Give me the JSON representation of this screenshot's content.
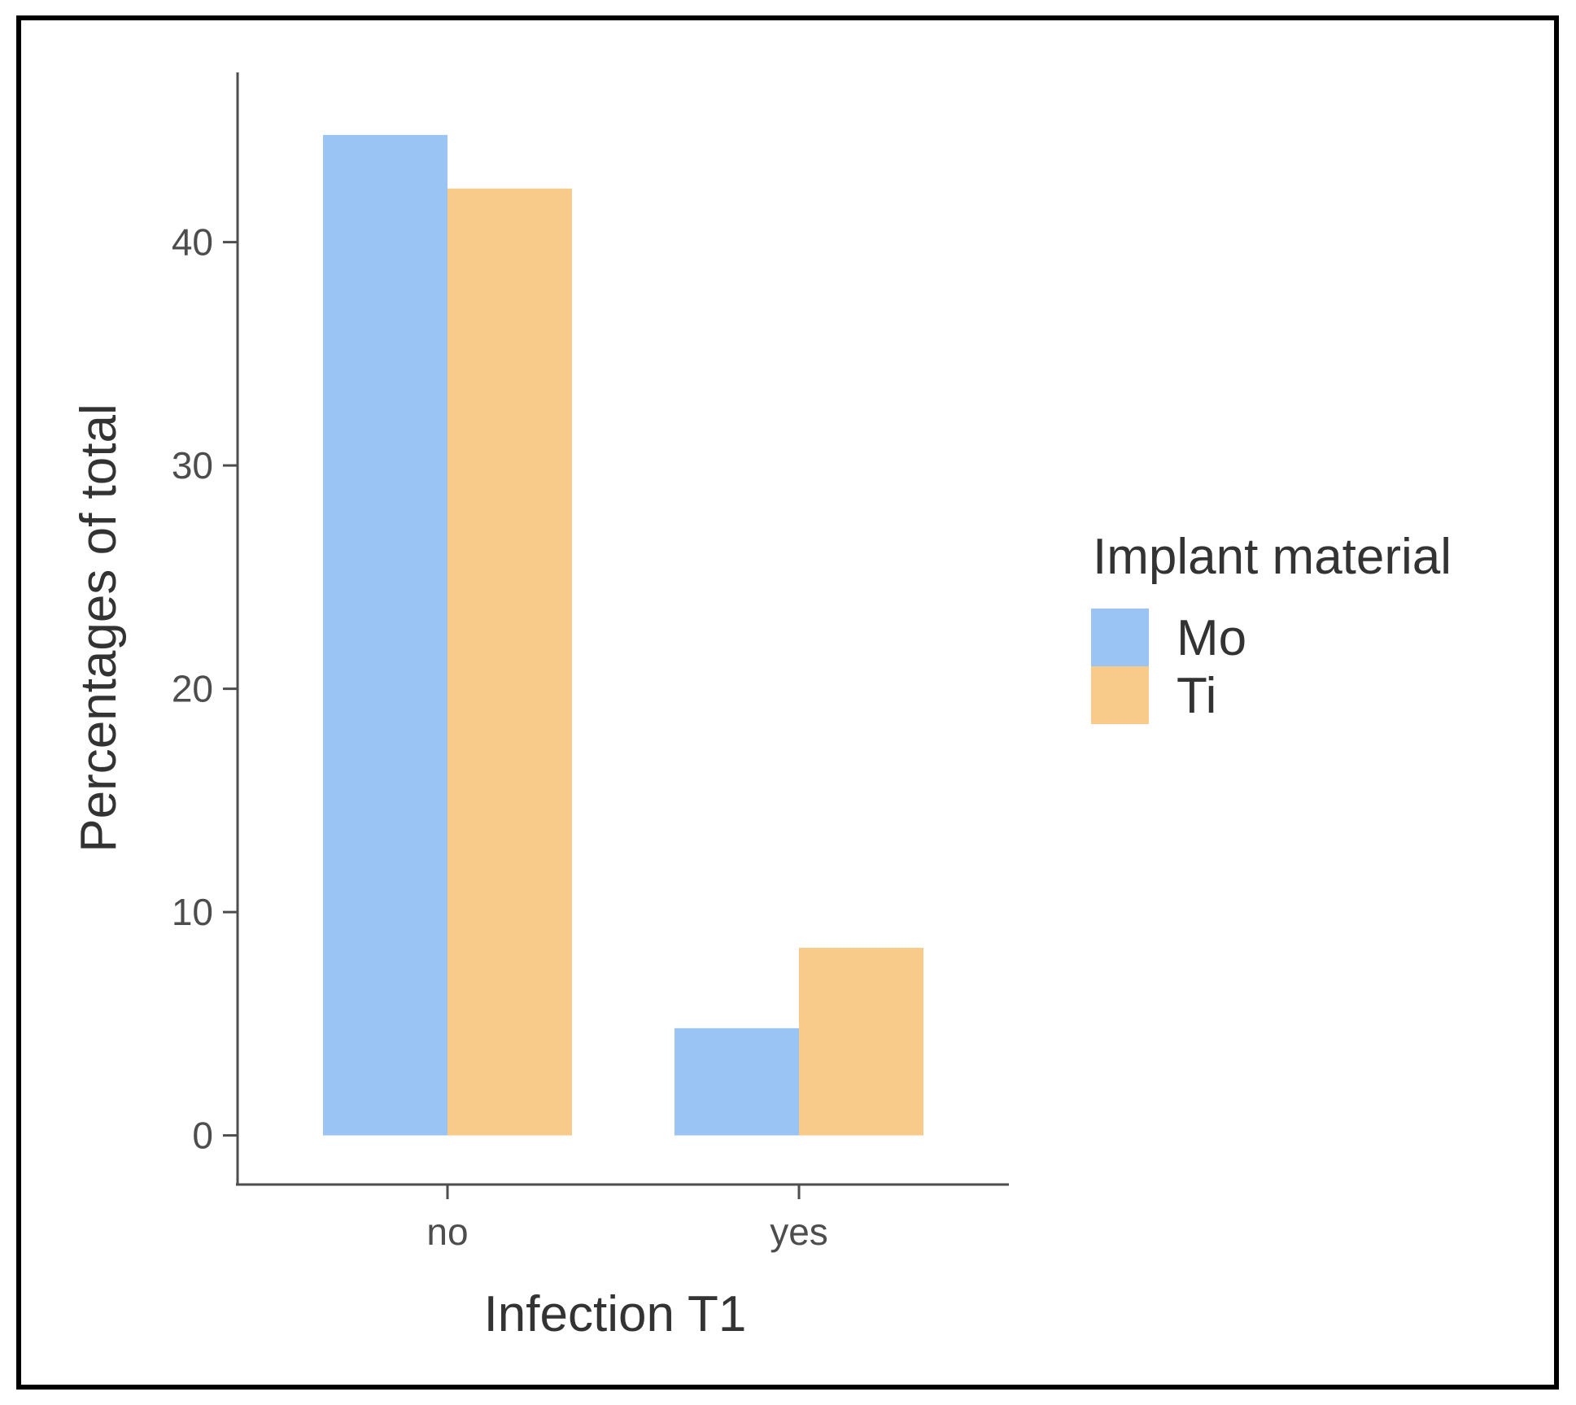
{
  "chart_data": {
    "type": "bar",
    "title": "",
    "xlabel": "Infection T1",
    "ylabel": "Percentages of total",
    "categories": [
      "no",
      "yes"
    ],
    "series": [
      {
        "name": "Mo",
        "values": [
          44.8,
          4.8
        ],
        "color": "#9AC4F3"
      },
      {
        "name": "Ti",
        "values": [
          42.4,
          8.4
        ],
        "color": "#F8CB8B"
      }
    ],
    "ylim": [
      -2.2,
      47.6
    ],
    "yticks": [
      0,
      10,
      20,
      30,
      40
    ],
    "legend": {
      "title": "Implant material",
      "position": "right"
    },
    "grid": false
  }
}
